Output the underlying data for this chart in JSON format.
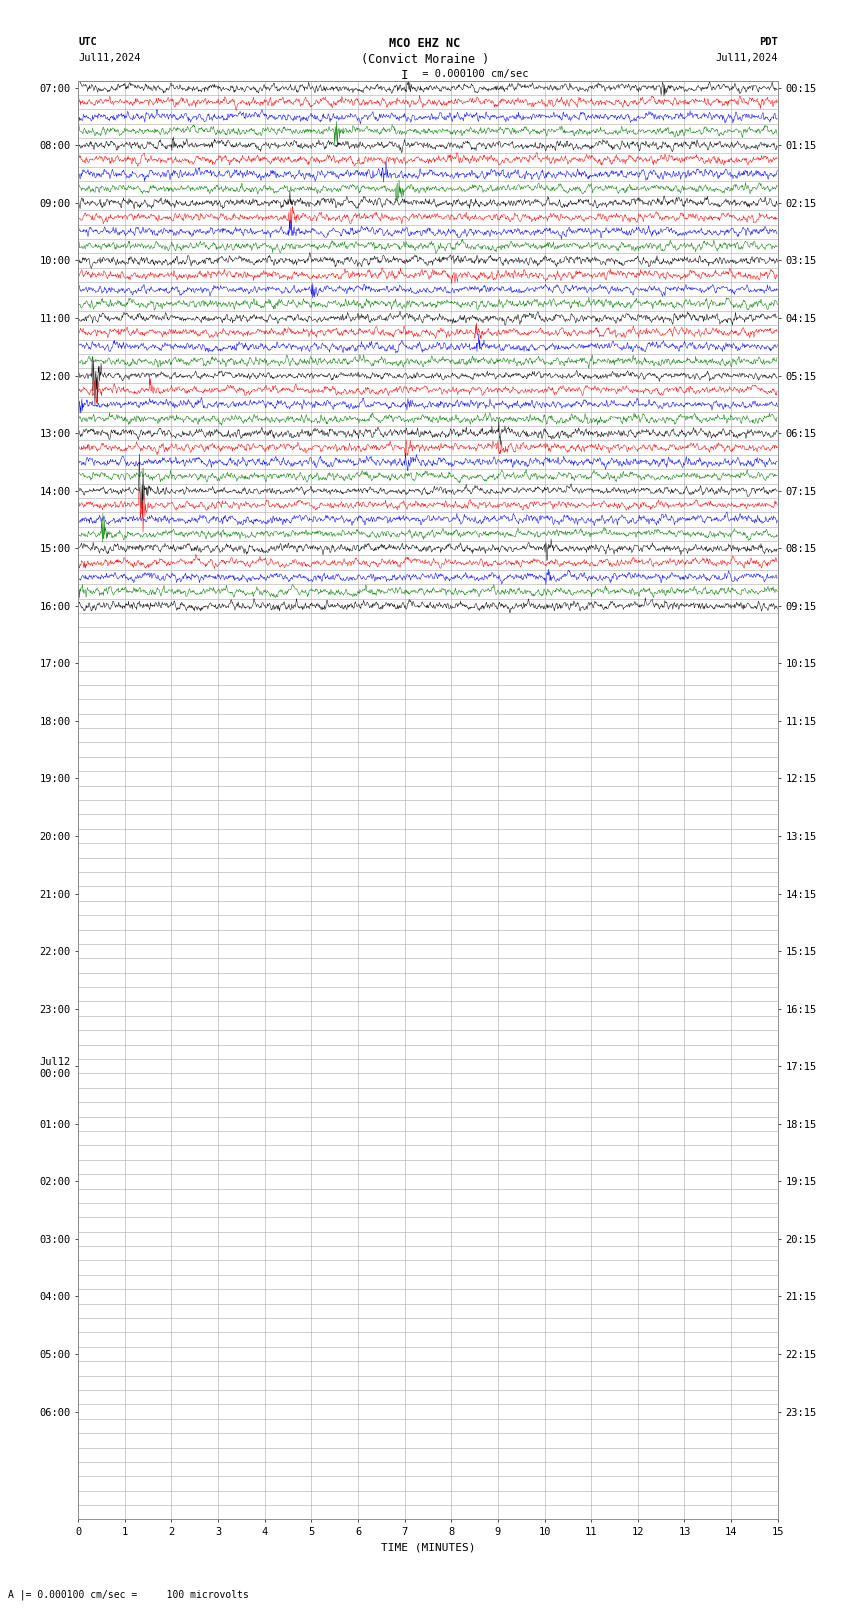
{
  "title_line1": "MCO EHZ NC",
  "title_line2": "(Convict Moraine )",
  "scale_label": "I = 0.000100 cm/sec",
  "utc_label": "UTC",
  "utc_date": "Jul11,2024",
  "pdt_label": "PDT",
  "pdt_date": "Jul11,2024",
  "bottom_label": "TIME (MINUTES)",
  "footer_label": "A |= 0.000100 cm/sec =     100 microvolts",
  "left_times_utc": [
    "07:00",
    "",
    "",
    "",
    "08:00",
    "",
    "",
    "",
    "09:00",
    "",
    "",
    "",
    "10:00",
    "",
    "",
    "",
    "11:00",
    "",
    "",
    "",
    "12:00",
    "",
    "",
    "",
    "13:00",
    "",
    "",
    "",
    "14:00",
    "",
    "",
    "",
    "15:00",
    "",
    "",
    "",
    "16:00",
    "",
    "",
    "",
    "17:00",
    "",
    "",
    "",
    "18:00",
    "",
    "",
    "",
    "19:00",
    "",
    "",
    "",
    "20:00",
    "",
    "",
    "",
    "21:00",
    "",
    "",
    "",
    "22:00",
    "",
    "",
    "",
    "23:00",
    "",
    "",
    "",
    "Jul12\n00:00",
    "",
    "",
    "",
    "01:00",
    "",
    "",
    "",
    "02:00",
    "",
    "",
    "",
    "03:00",
    "",
    "",
    "",
    "04:00",
    "",
    "",
    "",
    "05:00",
    "",
    "",
    "",
    "06:00",
    ""
  ],
  "right_times_pdt": [
    "00:15",
    "",
    "",
    "",
    "01:15",
    "",
    "",
    "",
    "02:15",
    "",
    "",
    "",
    "03:15",
    "",
    "",
    "",
    "04:15",
    "",
    "",
    "",
    "05:15",
    "",
    "",
    "",
    "06:15",
    "",
    "",
    "",
    "07:15",
    "",
    "",
    "",
    "08:15",
    "",
    "",
    "",
    "09:15",
    "",
    "",
    "",
    "10:15",
    "",
    "",
    "",
    "11:15",
    "",
    "",
    "",
    "12:15",
    "",
    "",
    "",
    "13:15",
    "",
    "",
    "",
    "14:15",
    "",
    "",
    "",
    "15:15",
    "",
    "",
    "",
    "16:15",
    "",
    "",
    "",
    "17:15",
    "",
    "",
    "",
    "18:15",
    "",
    "",
    "",
    "19:15",
    "",
    "",
    "",
    "20:15",
    "",
    "",
    "",
    "21:15",
    "",
    "",
    "",
    "22:15",
    "",
    "",
    "",
    "23:15",
    ""
  ],
  "trace_colors": [
    "black",
    "red",
    "blue",
    "green"
  ],
  "num_rows": 100,
  "active_rows": 37,
  "minutes_ticks": [
    0,
    1,
    2,
    3,
    4,
    5,
    6,
    7,
    8,
    9,
    10,
    11,
    12,
    13,
    14,
    15
  ],
  "bg_color": "#ffffff",
  "grid_color": "#aaaaaa",
  "figwidth": 8.5,
  "figheight": 16.13,
  "dpi": 100
}
